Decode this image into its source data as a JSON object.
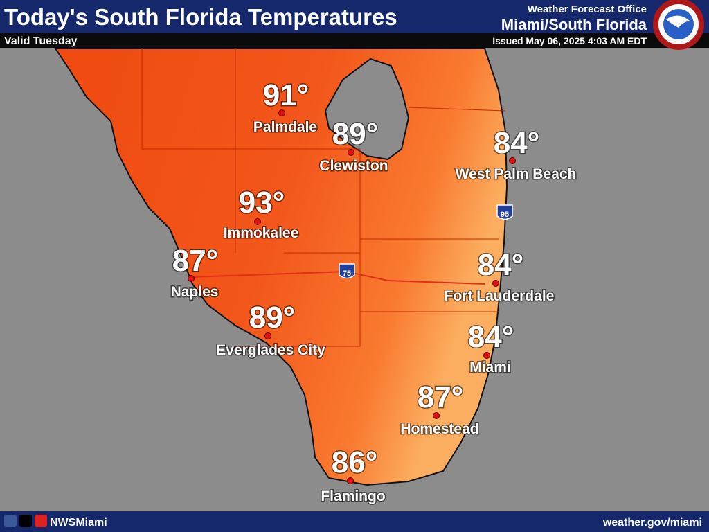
{
  "header": {
    "title": "Today's South Florida Temperatures",
    "subtitle": "Valid Tuesday",
    "office": "Weather Forecast Office",
    "region": "Miami/South Florida",
    "issued": "Issued May 06, 2025 4:03 AM EDT"
  },
  "cities": [
    {
      "name": "Palmdale",
      "temp": "91°"
    },
    {
      "name": "Clewiston",
      "temp": "89°"
    },
    {
      "name": "West Palm Beach",
      "temp": "84°"
    },
    {
      "name": "Immokalee",
      "temp": "93°"
    },
    {
      "name": "Naples",
      "temp": "87°"
    },
    {
      "name": "Fort Lauderdale",
      "temp": "84°"
    },
    {
      "name": "Everglades City",
      "temp": "89°"
    },
    {
      "name": "Miami",
      "temp": "84°"
    },
    {
      "name": "Homestead",
      "temp": "87°"
    },
    {
      "name": "Flamingo",
      "temp": "86°"
    }
  ],
  "highways": [
    "75",
    "95"
  ],
  "footer": {
    "handle": "NWSMiami",
    "url": "weather.gov/miami"
  }
}
